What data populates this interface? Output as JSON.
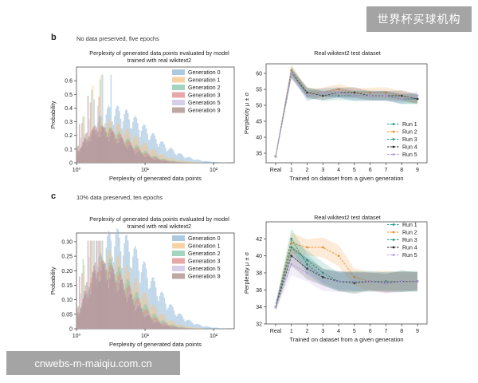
{
  "watermark_top": "世界杯买球机构",
  "watermark_bottom": "cnwebs-m-maiqiu.com.cn",
  "panels": [
    {
      "letter": "b",
      "subtitle": "No data preserved, five epochs"
    },
    {
      "letter": "c",
      "subtitle": "10% data preserved, ten epochs"
    }
  ],
  "chart_data": [
    {
      "type": "histogram",
      "title": "Perplexity of generated data points evaluated by model trained with real wikitext2",
      "xlabel": "Perplexity of generated data points",
      "ylabel": "Probability",
      "xscale": "log",
      "xlim": [
        1,
        200
      ],
      "ylim": [
        0,
        0.7
      ],
      "xticks": [
        "10⁰",
        "10¹",
        "10²"
      ],
      "yticks": [
        "0",
        "0.1",
        "0.2",
        "0.3",
        "0.4",
        "0.5",
        "0.6"
      ],
      "legend_position": "top-right",
      "series": [
        {
          "name": "Generation 0",
          "color": "#8fb8d8",
          "peak_x": 3.2,
          "peak_y": 0.34,
          "sigma": 0.42
        },
        {
          "name": "Generation 1",
          "color": "#f3c48a",
          "peak_x": 2.5,
          "peak_y": 0.26,
          "sigma": 0.38
        },
        {
          "name": "Generation 2",
          "color": "#86c7a8",
          "peak_x": 2.2,
          "peak_y": 0.22,
          "sigma": 0.35
        },
        {
          "name": "Generation 3",
          "color": "#e18b8b",
          "peak_x": 2.1,
          "peak_y": 0.22,
          "sigma": 0.34
        },
        {
          "name": "Generation 5",
          "color": "#c9bfe2",
          "peak_x": 2.0,
          "peak_y": 0.2,
          "sigma": 0.33
        },
        {
          "name": "Generation 9",
          "color": "#a98a85",
          "peak_x": 1.9,
          "peak_y": 0.22,
          "sigma": 0.33
        }
      ]
    },
    {
      "type": "line",
      "title": "Real wikitext2 test dataset",
      "xlabel": "Trained on dataset from a given generation",
      "ylabel": "Perplexity μ ± σ",
      "categories": [
        "Real",
        "1",
        "2",
        "3",
        "4",
        "5",
        "6",
        "7",
        "8",
        "9"
      ],
      "ylim": [
        32,
        63
      ],
      "yticks": [
        35,
        40,
        45,
        50,
        55,
        60
      ],
      "legend_position": "center-right",
      "band_sd": 1.2,
      "series": [
        {
          "name": "Run 1",
          "color": "#1f9e89",
          "values": [
            34,
            61,
            53,
            54,
            54,
            53,
            53,
            53,
            52,
            52
          ]
        },
        {
          "name": "Run 2",
          "color": "#f28e2b",
          "values": [
            34,
            61,
            54,
            54,
            55,
            54,
            54,
            54,
            53,
            52
          ]
        },
        {
          "name": "Run 3",
          "color": "#2a9d8f",
          "values": [
            34,
            60,
            54,
            53,
            53,
            53,
            53,
            53,
            52,
            52
          ]
        },
        {
          "name": "Run 4",
          "color": "#2b2b2b",
          "values": [
            34,
            60,
            54,
            53,
            54,
            54,
            53,
            53,
            53,
            52
          ]
        },
        {
          "name": "Run 5",
          "color": "#b39ddb",
          "values": [
            34,
            60,
            53,
            54,
            54,
            53,
            53,
            53,
            52,
            53
          ]
        }
      ]
    },
    {
      "type": "histogram",
      "title": "Perplexity of generated data points evaluated by model trained with real wikitext2",
      "xlabel": "Perplexity of generated data points",
      "ylabel": "Probability",
      "xscale": "log",
      "xlim": [
        1,
        200
      ],
      "ylim": [
        0,
        0.33
      ],
      "xticks": [
        "10⁰",
        "10¹",
        "10²"
      ],
      "yticks": [
        "0",
        "0.05",
        "0.10",
        "0.15",
        "0.20",
        "0.25",
        "0.30"
      ],
      "legend_position": "top-right",
      "series": [
        {
          "name": "Generation 0",
          "color": "#8fb8d8",
          "peak_x": 3.4,
          "peak_y": 0.28,
          "sigma": 0.4
        },
        {
          "name": "Generation 1",
          "color": "#f3c48a",
          "peak_x": 2.7,
          "peak_y": 0.22,
          "sigma": 0.36
        },
        {
          "name": "Generation 2",
          "color": "#86c7a8",
          "peak_x": 2.4,
          "peak_y": 0.2,
          "sigma": 0.34
        },
        {
          "name": "Generation 3",
          "color": "#e18b8b",
          "peak_x": 2.3,
          "peak_y": 0.19,
          "sigma": 0.33
        },
        {
          "name": "Generation 5",
          "color": "#c9bfe2",
          "peak_x": 2.2,
          "peak_y": 0.18,
          "sigma": 0.32
        },
        {
          "name": "Generation 9",
          "color": "#a98a85",
          "peak_x": 2.1,
          "peak_y": 0.19,
          "sigma": 0.32
        }
      ]
    },
    {
      "type": "line",
      "title": "Real wikitext2 test dataset",
      "xlabel": "Trained on dataset from a given generation",
      "ylabel": "Perplexity μ ± σ",
      "categories": [
        "Real",
        "1",
        "2",
        "3",
        "4",
        "5",
        "6",
        "7",
        "8",
        "9"
      ],
      "ylim": [
        32,
        44
      ],
      "yticks": [
        32,
        34,
        36,
        38,
        40,
        42
      ],
      "legend_position": "top-right",
      "band_sd": 0.9,
      "series": [
        {
          "name": "Run 1",
          "color": "#1f9e89",
          "values": [
            34,
            42,
            39,
            37.5,
            37,
            37,
            37,
            37,
            37,
            37
          ]
        },
        {
          "name": "Run 2",
          "color": "#f28e2b",
          "values": [
            34,
            41.5,
            41,
            41,
            40,
            37.5,
            37,
            37,
            37,
            37
          ]
        },
        {
          "name": "Run 3",
          "color": "#2a9d8f",
          "values": [
            34,
            41,
            39.5,
            38,
            37,
            37,
            37,
            37,
            37,
            37
          ]
        },
        {
          "name": "Run 4",
          "color": "#2b2b2b",
          "values": [
            34,
            40,
            38.5,
            37.5,
            37,
            36.8,
            37,
            36.8,
            37,
            37
          ]
        },
        {
          "name": "Run 5",
          "color": "#b39ddb",
          "values": [
            34,
            39,
            38,
            37,
            37,
            37,
            37,
            36.8,
            37,
            37
          ]
        }
      ]
    }
  ]
}
